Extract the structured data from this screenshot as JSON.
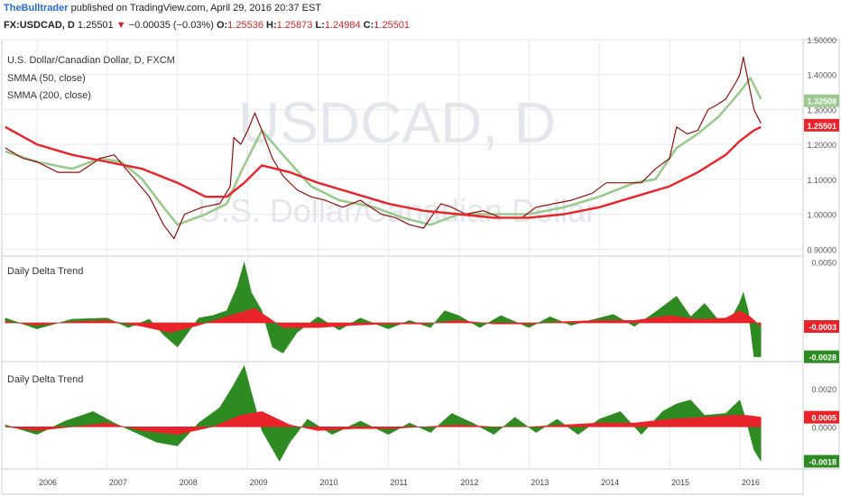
{
  "header": {
    "author": "TheBulltrader",
    "published_text": "published on TradingView.com, April 29, 2016 20:37 EST",
    "symbol": "FX:USDCAD, D",
    "last": "1.25501",
    "change": "−0.00035 (−0.03%)",
    "o_key": "O:",
    "o_val": "1.25536",
    "h_key": "H:",
    "h_val": "1.25873",
    "l_key": "L:",
    "l_val": "1.24984",
    "c_key": "C:",
    "c_val": "1.25501"
  },
  "colors": {
    "price": "#8B1010",
    "smma50": "#9cc98e",
    "smma200": "#e8232a",
    "delta_pos": "#2e8b22",
    "delta_neg": "#e8232a",
    "grid": "#e6e9ee"
  },
  "main_pane": {
    "legend_title": "U.S. Dollar/Canadian Dollar, D, FXCM",
    "legend_smma50": "SMMA (50, close)",
    "legend_smma200": "SMMA (200, close)",
    "watermark_symbol": "USDCAD, D",
    "watermark_desc": "U.S. Dollar/Canadian Dollar",
    "y_ticks": [
      "1.50000",
      "1.40000",
      "1.30000",
      "1.20000",
      "1.10000",
      "1.00000",
      "0.90000"
    ],
    "badges": [
      {
        "label": "1.32508",
        "color": "#9cc98e"
      },
      {
        "label": "1.25501",
        "color": "#e8232a"
      }
    ]
  },
  "pane2": {
    "title": "Daily Delta Trend",
    "y_ticks": [
      "0.0050"
    ],
    "badges": [
      {
        "label": "-0.0003",
        "color": "#e8232a"
      },
      {
        "label": "-0.0028",
        "color": "#2e8b22"
      }
    ]
  },
  "pane3": {
    "title": "Daily Delta Trend",
    "y_ticks": [
      "0.0020",
      "0.0000"
    ],
    "badges": [
      {
        "label": "0.0005",
        "color": "#e8232a"
      },
      {
        "label": "-0.0018",
        "color": "#2e8b22"
      }
    ]
  },
  "x_axis": {
    "labels": [
      "2006",
      "2007",
      "2008",
      "2009",
      "2010",
      "2011",
      "2012",
      "2013",
      "2014",
      "2015",
      "2016"
    ]
  },
  "chart_data": {
    "type": "line",
    "x_range": [
      2005.5,
      2016.9
    ],
    "x_ticks": [
      2006,
      2007,
      2008,
      2009,
      2010,
      2011,
      2012,
      2013,
      2014,
      2015,
      2016
    ],
    "price_ylim": [
      0.88,
      1.5
    ],
    "price_series": [
      {
        "name": "price",
        "x": [
          2005.55,
          2005.8,
          2006.0,
          2006.3,
          2006.6,
          2006.9,
          2007.1,
          2007.35,
          2007.6,
          2007.8,
          2007.95,
          2008.1,
          2008.35,
          2008.6,
          2008.75,
          2008.8,
          2008.9,
          2009.0,
          2009.1,
          2009.2,
          2009.35,
          2009.5,
          2009.7,
          2009.9,
          2010.1,
          2010.35,
          2010.6,
          2010.9,
          2011.1,
          2011.3,
          2011.5,
          2011.6,
          2011.75,
          2011.9,
          2012.1,
          2012.35,
          2012.6,
          2012.9,
          2013.1,
          2013.35,
          2013.6,
          2013.9,
          2014.1,
          2014.35,
          2014.6,
          2014.8,
          2015.0,
          2015.1,
          2015.25,
          2015.4,
          2015.55,
          2015.65,
          2015.8,
          2015.95,
          2016.0,
          2016.05,
          2016.1,
          2016.2,
          2016.3
        ],
        "values": [
          1.19,
          1.16,
          1.15,
          1.12,
          1.12,
          1.16,
          1.17,
          1.11,
          1.05,
          0.97,
          0.93,
          1.0,
          1.02,
          1.03,
          1.08,
          1.22,
          1.2,
          1.24,
          1.29,
          1.24,
          1.16,
          1.11,
          1.07,
          1.05,
          1.04,
          1.02,
          1.04,
          1.0,
          0.99,
          0.97,
          0.96,
          0.99,
          1.03,
          1.02,
          1.0,
          1.01,
          0.99,
          0.99,
          1.02,
          1.03,
          1.04,
          1.06,
          1.09,
          1.09,
          1.09,
          1.13,
          1.16,
          1.25,
          1.23,
          1.24,
          1.3,
          1.31,
          1.33,
          1.38,
          1.4,
          1.45,
          1.4,
          1.3,
          1.26
        ]
      },
      {
        "name": "SMMA (50, close)",
        "x": [
          2005.55,
          2006.0,
          2006.5,
          2006.9,
          2007.2,
          2007.5,
          2007.8,
          2008.0,
          2008.4,
          2008.7,
          2008.9,
          2009.2,
          2009.5,
          2009.9,
          2010.3,
          2010.8,
          2011.2,
          2011.6,
          2012.0,
          2012.5,
          2013.0,
          2013.5,
          2014.0,
          2014.5,
          2014.8,
          2015.1,
          2015.4,
          2015.7,
          2016.0,
          2016.15,
          2016.3
        ],
        "values": [
          1.18,
          1.15,
          1.13,
          1.16,
          1.15,
          1.1,
          1.02,
          0.97,
          1.0,
          1.03,
          1.12,
          1.24,
          1.17,
          1.08,
          1.04,
          1.02,
          0.99,
          0.97,
          1.0,
          1.0,
          1.0,
          1.02,
          1.05,
          1.09,
          1.1,
          1.19,
          1.23,
          1.28,
          1.35,
          1.39,
          1.33
        ]
      },
      {
        "name": "SMMA (200, close)",
        "x": [
          2005.55,
          2006.0,
          2006.5,
          2007.0,
          2007.5,
          2008.0,
          2008.4,
          2008.7,
          2008.95,
          2009.2,
          2009.6,
          2010.0,
          2010.5,
          2011.0,
          2011.5,
          2012.0,
          2012.5,
          2013.0,
          2013.5,
          2014.0,
          2014.5,
          2015.0,
          2015.4,
          2015.8,
          2016.0,
          2016.2,
          2016.3
        ],
        "values": [
          1.25,
          1.2,
          1.17,
          1.15,
          1.13,
          1.09,
          1.05,
          1.05,
          1.09,
          1.14,
          1.12,
          1.09,
          1.06,
          1.03,
          1.01,
          1.0,
          0.99,
          0.99,
          1.0,
          1.02,
          1.05,
          1.08,
          1.12,
          1.17,
          1.21,
          1.24,
          1.25
        ]
      }
    ],
    "delta1_ylim": [
      -0.0032,
      0.0055
    ],
    "delta1_series": [
      {
        "name": "green",
        "x": [
          2005.55,
          2006.0,
          2006.5,
          2007.0,
          2007.3,
          2007.6,
          2007.8,
          2008.0,
          2008.3,
          2008.5,
          2008.7,
          2008.85,
          2008.95,
          2009.05,
          2009.2,
          2009.35,
          2009.5,
          2009.7,
          2010.0,
          2010.3,
          2010.6,
          2011.0,
          2011.3,
          2011.6,
          2011.8,
          2012.0,
          2012.3,
          2012.6,
          2013.0,
          2013.3,
          2013.6,
          2014.0,
          2014.2,
          2014.5,
          2014.8,
          2015.1,
          2015.3,
          2015.5,
          2015.7,
          2015.9,
          2016.0,
          2016.05,
          2016.12,
          2016.2,
          2016.3
        ],
        "values": [
          0.0004,
          -0.0005,
          0.0003,
          0.0004,
          -0.0004,
          0.0003,
          -0.001,
          -0.002,
          0.0004,
          0.0006,
          0.001,
          0.003,
          0.005,
          0.0025,
          0.001,
          -0.002,
          -0.0025,
          -0.0008,
          0.0005,
          -0.0006,
          0.0004,
          -0.0005,
          0.0002,
          -0.0004,
          0.001,
          0.0006,
          -0.0004,
          0.0006,
          -0.0004,
          0.0005,
          -0.0002,
          0.0004,
          0.0007,
          -0.0003,
          0.0009,
          0.0022,
          0.0005,
          0.0016,
          0.0002,
          0.0006,
          0.0017,
          0.0025,
          0.001,
          -0.0028,
          -0.0028
        ]
      },
      {
        "name": "red",
        "x": [
          2005.55,
          2006.0,
          2006.5,
          2007.0,
          2007.5,
          2007.9,
          2008.3,
          2008.8,
          2009.1,
          2009.5,
          2010.0,
          2010.5,
          2011.0,
          2011.5,
          2012.0,
          2012.5,
          2013.0,
          2013.5,
          2014.0,
          2014.5,
          2015.0,
          2015.4,
          2015.8,
          2016.0,
          2016.15,
          2016.3
        ],
        "values": [
          0.0001,
          -0.0002,
          0.0001,
          0.0002,
          -0.0003,
          -0.0008,
          -0.0002,
          0.0007,
          0.0012,
          -0.0004,
          -0.0004,
          -0.0002,
          -0.0001,
          -0.0001,
          0.0002,
          -0.0001,
          -0.0001,
          0.0001,
          0.0002,
          0.0002,
          0.0006,
          0.0003,
          0.0004,
          0.001,
          0.0005,
          -0.0003
        ]
      }
    ],
    "delta2_ylim": [
      -0.0022,
      0.0034
    ],
    "delta2_series": [
      {
        "name": "green",
        "x": [
          2005.55,
          2006.0,
          2006.4,
          2006.8,
          2007.1,
          2007.4,
          2007.7,
          2008.0,
          2008.3,
          2008.6,
          2008.8,
          2008.95,
          2009.05,
          2009.2,
          2009.45,
          2009.6,
          2009.85,
          2010.2,
          2010.6,
          2011.0,
          2011.3,
          2011.6,
          2011.9,
          2012.2,
          2012.5,
          2012.8,
          2013.1,
          2013.4,
          2013.7,
          2014.0,
          2014.3,
          2014.6,
          2014.9,
          2015.1,
          2015.3,
          2015.5,
          2015.8,
          2016.0,
          2016.1,
          2016.2,
          2016.3
        ],
        "values": [
          0.0001,
          -0.0004,
          0.0003,
          0.0008,
          0.0002,
          -0.0003,
          -0.0008,
          -0.001,
          0.0002,
          0.001,
          0.0022,
          0.0032,
          0.0018,
          -0.0002,
          -0.0018,
          -0.0008,
          0.0004,
          -0.0004,
          0.0003,
          -0.0004,
          0.0002,
          -0.0003,
          0.0007,
          0.0002,
          -0.0004,
          0.0005,
          -0.0003,
          0.0004,
          -0.0004,
          0.0004,
          0.0008,
          -0.0004,
          0.0008,
          0.0012,
          0.0014,
          0.0006,
          0.0007,
          0.0014,
          0.0002,
          -0.0012,
          -0.0018
        ]
      },
      {
        "name": "red",
        "x": [
          2005.55,
          2006.0,
          2006.5,
          2007.0,
          2007.5,
          2008.0,
          2008.5,
          2008.9,
          2009.2,
          2009.6,
          2010.0,
          2010.5,
          2011.0,
          2011.5,
          2012.0,
          2012.5,
          2013.0,
          2013.5,
          2014.0,
          2014.5,
          2015.0,
          2015.5,
          2015.9,
          2016.1,
          2016.3
        ],
        "values": [
          0.0,
          -0.0002,
          0.0,
          0.0002,
          -0.0002,
          -0.0004,
          0.0,
          0.0006,
          0.0008,
          0.0001,
          -0.0002,
          -0.0001,
          -0.0001,
          0.0,
          0.0001,
          0.0,
          0.0,
          0.0001,
          0.0002,
          0.0002,
          0.0004,
          0.0005,
          0.0006,
          0.0006,
          0.0005
        ]
      }
    ]
  }
}
